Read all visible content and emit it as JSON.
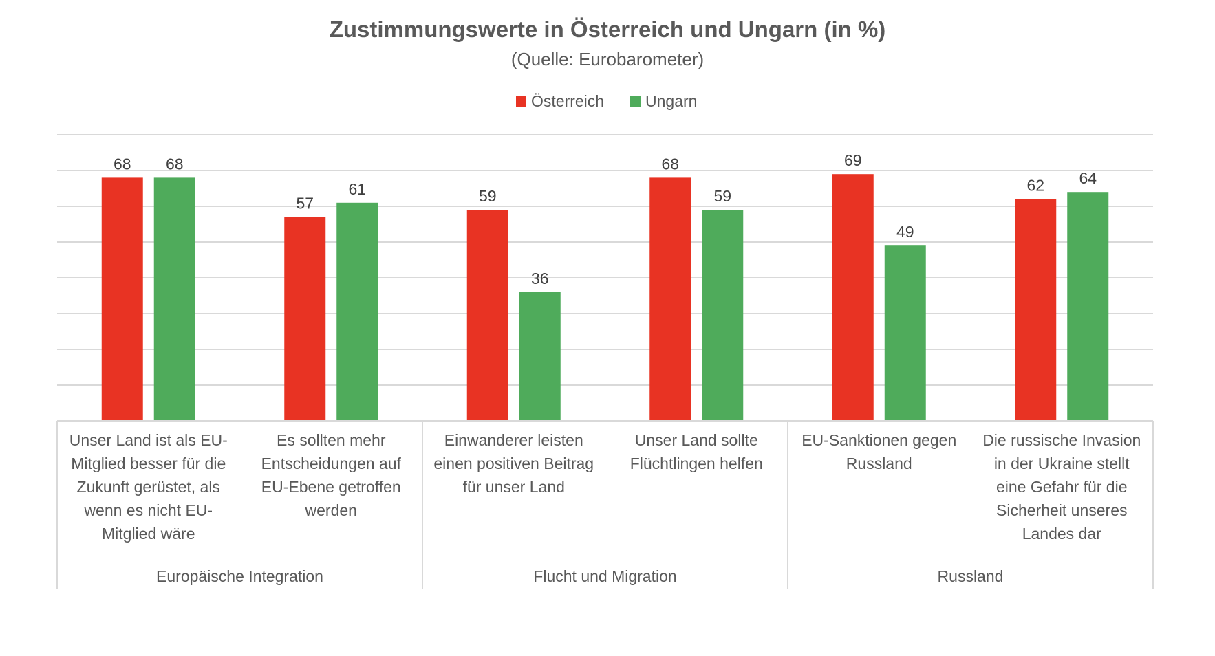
{
  "chart_data": {
    "type": "bar",
    "title": "Zustimmungswerte in Österreich und Ungarn (in %)",
    "subtitle": "(Quelle: Eurobarometer)",
    "xlabel": "",
    "ylabel": "",
    "ylim": [
      0,
      80
    ],
    "y_gridline_step": 10,
    "y_tick_labels_visible": false,
    "grid": true,
    "legend_position": "top-center",
    "categories": [
      [
        "Unser Land ist als EU-",
        "Mitglied besser für die",
        "Zukunft gerüstet, als",
        "wenn es nicht EU-",
        "Mitglied wäre"
      ],
      [
        "Es sollten mehr",
        "Entscheidungen auf",
        "EU-Ebene getroffen",
        "werden"
      ],
      [
        "Einwanderer leisten",
        "einen positiven Beitrag",
        "für unser Land"
      ],
      [
        "Unser Land sollte",
        "Flüchtlingen helfen"
      ],
      [
        "EU-Sanktionen gegen",
        "Russland"
      ],
      [
        "Die russische Invasion",
        "in der Ukraine stellt",
        "eine Gefahr für die",
        "Sicherheit unseres",
        "Landes dar"
      ]
    ],
    "groups": [
      {
        "label": "Europäische Integration",
        "categories": [
          0,
          1
        ]
      },
      {
        "label": "Flucht und Migration",
        "categories": [
          2,
          3
        ]
      },
      {
        "label": "Russland",
        "categories": [
          4,
          5
        ]
      }
    ],
    "series": [
      {
        "name": "Österreich",
        "color": "#e83323",
        "values": [
          68,
          57,
          59,
          68,
          69,
          62
        ]
      },
      {
        "name": "Ungarn",
        "color": "#4fab5b",
        "values": [
          68,
          61,
          36,
          59,
          49,
          64
        ]
      }
    ]
  }
}
